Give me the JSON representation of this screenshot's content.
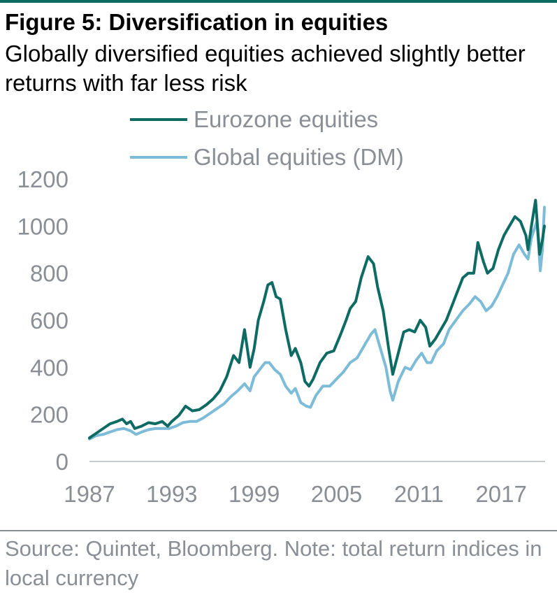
{
  "header": {
    "title": "Figure 5: Diversification in equities",
    "subtitle": "Globally diversified equities achieved slightly better returns with far less risk"
  },
  "footer": {
    "source": "Source: Quintet, Bloomberg. Note: total return indices in local currency"
  },
  "colors": {
    "accent": "#0e6b63",
    "eurozone": "#0e6b63",
    "global": "#7dbcd8",
    "text_muted": "#8a8f95"
  },
  "chart_data": {
    "type": "line",
    "xlim": [
      1987,
      2019.5
    ],
    "ylim": [
      0,
      1200
    ],
    "x_ticks": [
      "1987",
      "1993",
      "1999",
      "2005",
      "2011",
      "2017"
    ],
    "y_ticks": [
      "0",
      "200",
      "400",
      "600",
      "800",
      "1000",
      "1200"
    ],
    "legend_position": "top",
    "grid": false,
    "series": [
      {
        "name": "Eurozone equities",
        "color": "#0e6b63",
        "points": [
          [
            1987.0,
            100
          ],
          [
            1987.5,
            120
          ],
          [
            1988.0,
            140
          ],
          [
            1988.5,
            160
          ],
          [
            1989.0,
            170
          ],
          [
            1989.4,
            180
          ],
          [
            1989.7,
            160
          ],
          [
            1990.0,
            170
          ],
          [
            1990.3,
            140
          ],
          [
            1990.8,
            150
          ],
          [
            1991.3,
            165
          ],
          [
            1991.8,
            160
          ],
          [
            1992.3,
            170
          ],
          [
            1992.7,
            150
          ],
          [
            1993.0,
            170
          ],
          [
            1993.5,
            195
          ],
          [
            1994.0,
            235
          ],
          [
            1994.5,
            215
          ],
          [
            1995.0,
            220
          ],
          [
            1995.5,
            240
          ],
          [
            1996.0,
            265
          ],
          [
            1996.5,
            300
          ],
          [
            1997.0,
            360
          ],
          [
            1997.5,
            450
          ],
          [
            1997.9,
            420
          ],
          [
            1998.3,
            560
          ],
          [
            1998.7,
            400
          ],
          [
            1999.0,
            480
          ],
          [
            1999.3,
            600
          ],
          [
            1999.7,
            680
          ],
          [
            2000.0,
            750
          ],
          [
            2000.3,
            760
          ],
          [
            2000.6,
            700
          ],
          [
            2000.9,
            690
          ],
          [
            2001.3,
            560
          ],
          [
            2001.7,
            450
          ],
          [
            2002.0,
            480
          ],
          [
            2002.4,
            420
          ],
          [
            2002.7,
            340
          ],
          [
            2003.0,
            320
          ],
          [
            2003.3,
            350
          ],
          [
            2003.8,
            420
          ],
          [
            2004.3,
            460
          ],
          [
            2004.8,
            470
          ],
          [
            2005.3,
            540
          ],
          [
            2005.7,
            600
          ],
          [
            2006.0,
            650
          ],
          [
            2006.4,
            680
          ],
          [
            2006.8,
            780
          ],
          [
            2007.3,
            870
          ],
          [
            2007.7,
            840
          ],
          [
            2008.0,
            740
          ],
          [
            2008.4,
            640
          ],
          [
            2008.8,
            480
          ],
          [
            2009.1,
            370
          ],
          [
            2009.5,
            460
          ],
          [
            2009.9,
            550
          ],
          [
            2010.3,
            560
          ],
          [
            2010.7,
            550
          ],
          [
            2011.1,
            600
          ],
          [
            2011.5,
            570
          ],
          [
            2011.8,
            490
          ],
          [
            2012.2,
            520
          ],
          [
            2012.6,
            560
          ],
          [
            2013.0,
            600
          ],
          [
            2013.4,
            660
          ],
          [
            2013.8,
            720
          ],
          [
            2014.2,
            780
          ],
          [
            2014.6,
            800
          ],
          [
            2015.0,
            800
          ],
          [
            2015.3,
            930
          ],
          [
            2015.7,
            850
          ],
          [
            2016.0,
            800
          ],
          [
            2016.4,
            820
          ],
          [
            2016.8,
            900
          ],
          [
            2017.2,
            960
          ],
          [
            2017.6,
            1000
          ],
          [
            2018.0,
            1040
          ],
          [
            2018.4,
            1020
          ],
          [
            2018.8,
            960
          ],
          [
            2018.95,
            900
          ],
          [
            2019.2,
            1000
          ],
          [
            2019.5,
            1110
          ],
          [
            2019.8,
            880
          ],
          [
            2020.0,
            940
          ],
          [
            2020.15,
            1000
          ]
        ]
      },
      {
        "name": "Global equities (DM)",
        "color": "#7dbcd8",
        "points": [
          [
            1987.0,
            95
          ],
          [
            1987.5,
            110
          ],
          [
            1988.0,
            115
          ],
          [
            1988.5,
            125
          ],
          [
            1989.0,
            135
          ],
          [
            1989.5,
            140
          ],
          [
            1990.0,
            130
          ],
          [
            1990.4,
            115
          ],
          [
            1990.8,
            125
          ],
          [
            1991.3,
            135
          ],
          [
            1991.8,
            140
          ],
          [
            1992.3,
            140
          ],
          [
            1992.8,
            140
          ],
          [
            1993.3,
            150
          ],
          [
            1993.8,
            165
          ],
          [
            1994.3,
            170
          ],
          [
            1994.8,
            170
          ],
          [
            1995.3,
            185
          ],
          [
            1995.8,
            205
          ],
          [
            1996.3,
            225
          ],
          [
            1996.8,
            245
          ],
          [
            1997.3,
            275
          ],
          [
            1997.8,
            300
          ],
          [
            1998.3,
            330
          ],
          [
            1998.7,
            300
          ],
          [
            1999.0,
            360
          ],
          [
            1999.4,
            390
          ],
          [
            1999.8,
            420
          ],
          [
            2000.1,
            420
          ],
          [
            2000.5,
            390
          ],
          [
            2000.9,
            370
          ],
          [
            2001.3,
            320
          ],
          [
            2001.7,
            290
          ],
          [
            2002.0,
            310
          ],
          [
            2002.4,
            250
          ],
          [
            2002.8,
            235
          ],
          [
            2003.1,
            230
          ],
          [
            2003.5,
            280
          ],
          [
            2004.0,
            320
          ],
          [
            2004.5,
            320
          ],
          [
            2005.0,
            350
          ],
          [
            2005.5,
            380
          ],
          [
            2006.0,
            420
          ],
          [
            2006.5,
            440
          ],
          [
            2007.0,
            490
          ],
          [
            2007.5,
            540
          ],
          [
            2007.8,
            560
          ],
          [
            2008.2,
            480
          ],
          [
            2008.6,
            400
          ],
          [
            2008.9,
            300
          ],
          [
            2009.1,
            260
          ],
          [
            2009.5,
            340
          ],
          [
            2010.0,
            400
          ],
          [
            2010.4,
            390
          ],
          [
            2010.8,
            430
          ],
          [
            2011.2,
            460
          ],
          [
            2011.6,
            420
          ],
          [
            2011.9,
            420
          ],
          [
            2012.3,
            470
          ],
          [
            2012.8,
            500
          ],
          [
            2013.2,
            560
          ],
          [
            2013.7,
            600
          ],
          [
            2014.2,
            640
          ],
          [
            2014.7,
            670
          ],
          [
            2015.1,
            700
          ],
          [
            2015.5,
            680
          ],
          [
            2015.9,
            640
          ],
          [
            2016.3,
            660
          ],
          [
            2016.7,
            700
          ],
          [
            2017.1,
            750
          ],
          [
            2017.5,
            800
          ],
          [
            2017.9,
            880
          ],
          [
            2018.3,
            920
          ],
          [
            2018.7,
            880
          ],
          [
            2018.95,
            860
          ],
          [
            2019.2,
            950
          ],
          [
            2019.6,
            1020
          ],
          [
            2019.85,
            810
          ],
          [
            2020.0,
            900
          ],
          [
            2020.15,
            1080
          ]
        ]
      }
    ]
  }
}
